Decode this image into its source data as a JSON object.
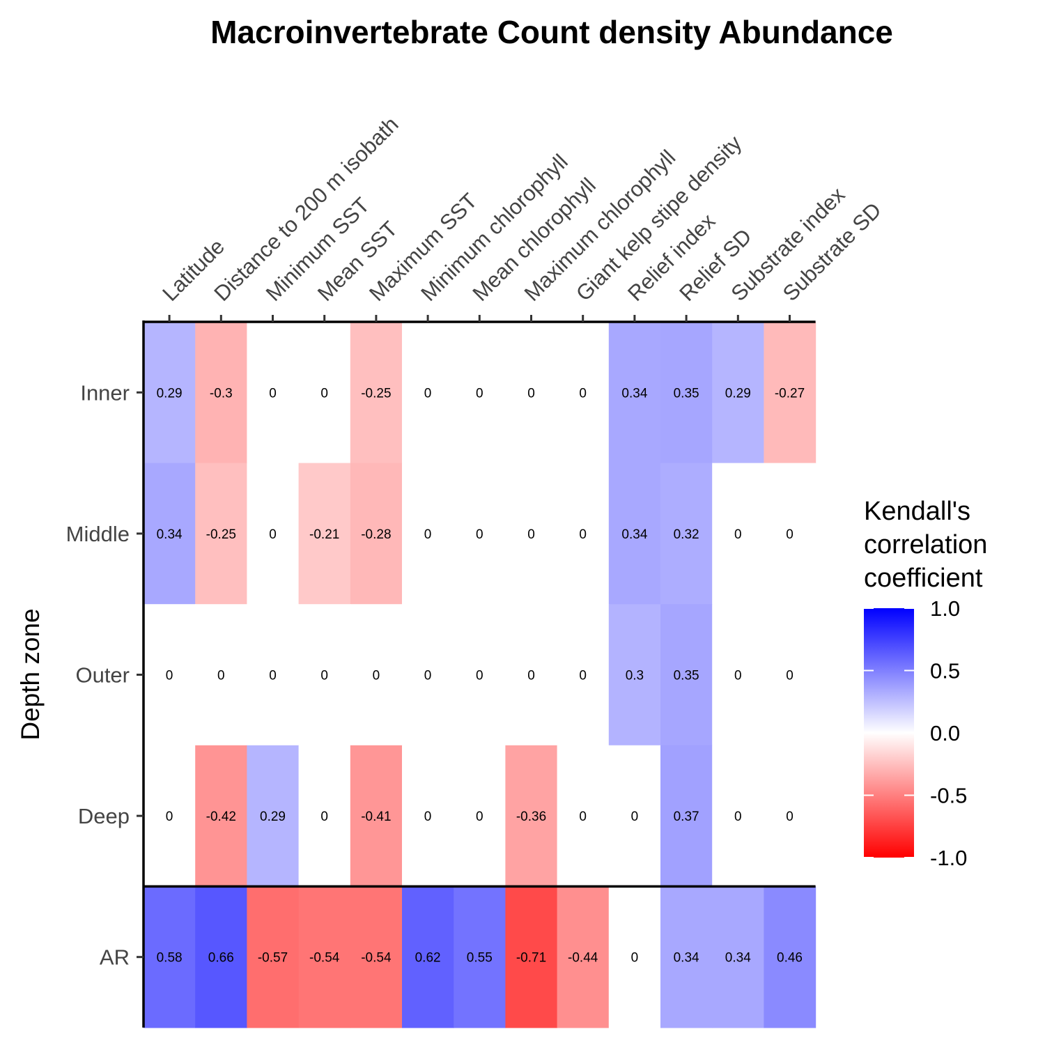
{
  "chart_data": {
    "type": "heatmap",
    "title": "Macroinvertebrate Count density Abundance",
    "ylabel": "Depth zone",
    "x_categories": [
      "Latitude",
      "Distance to 200 m isobath",
      "Minimum SST",
      "Mean SST",
      "Maximum SST",
      "Minimum chlorophyll",
      "Mean chlorophyll",
      "Maximum chlorophyll",
      "Giant kelp stipe density",
      "Relief index",
      "Relief SD",
      "Substrate index",
      "Substrate SD"
    ],
    "y_categories": [
      "Inner",
      "Middle",
      "Outer",
      "Deep",
      "AR"
    ],
    "values": [
      [
        0.29,
        -0.3,
        0,
        0,
        -0.25,
        0,
        0,
        0,
        0,
        0.34,
        0.35,
        0.29,
        -0.27
      ],
      [
        0.34,
        -0.25,
        0,
        -0.21,
        -0.28,
        0,
        0,
        0,
        0,
        0.34,
        0.32,
        0,
        0
      ],
      [
        0,
        0,
        0,
        0,
        0,
        0,
        0,
        0,
        0,
        0.3,
        0.35,
        0,
        0
      ],
      [
        0,
        -0.42,
        0.29,
        0,
        -0.41,
        0,
        0,
        -0.36,
        0,
        0,
        0.37,
        0,
        0
      ],
      [
        0.58,
        0.66,
        -0.57,
        -0.54,
        -0.54,
        0.62,
        0.55,
        -0.71,
        -0.44,
        0,
        0.34,
        0.34,
        0.46
      ]
    ],
    "legend": {
      "title": "Kendall's correlation coefficient",
      "title_lines": [
        "Kendall's",
        "correlation",
        "coefficient"
      ],
      "range": [
        -1.0,
        1.0
      ],
      "ticks": [
        "1.0",
        "0.5",
        "0.0",
        "-0.5",
        "-1.0"
      ],
      "tick_values": [
        1.0,
        0.5,
        0.0,
        -0.5,
        -1.0
      ],
      "placement": "right"
    },
    "colors": {
      "high": "#0000ff",
      "mid": "#ffffff",
      "low": "#ff0000"
    }
  }
}
